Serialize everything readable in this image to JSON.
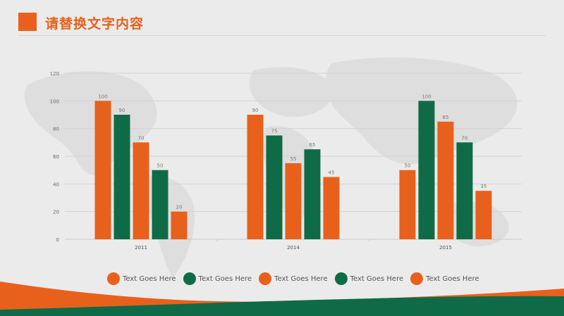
{
  "page": {
    "title": "请替换文字内容"
  },
  "colors": {
    "orange": "#e8611c",
    "green": "#0f6b47",
    "grid": "#d2d2d2",
    "tick_text": "#666666"
  },
  "chart_data": {
    "type": "bar",
    "categories": [
      "2011",
      "2014",
      "2015"
    ],
    "series": [
      {
        "name": "Text Goes Here",
        "color": "#e8611c",
        "values": [
          100,
          90,
          50
        ]
      },
      {
        "name": "Text Goes Here",
        "color": "#0f6b47",
        "values": [
          90,
          75,
          100
        ]
      },
      {
        "name": "Text Goes Here",
        "color": "#e8611c",
        "values": [
          70,
          55,
          85
        ]
      },
      {
        "name": "Text Goes Here",
        "color": "#0f6b47",
        "values": [
          50,
          65,
          70
        ]
      },
      {
        "name": "Text Goes Here",
        "color": "#e8611c",
        "values": [
          20,
          45,
          35
        ]
      }
    ],
    "ylim": [
      0,
      120
    ],
    "yticks": [
      "0",
      "20",
      "40",
      "60",
      "80",
      "100",
      "120"
    ],
    "grid": true,
    "legend_position": "bottom",
    "data_labels": true
  }
}
